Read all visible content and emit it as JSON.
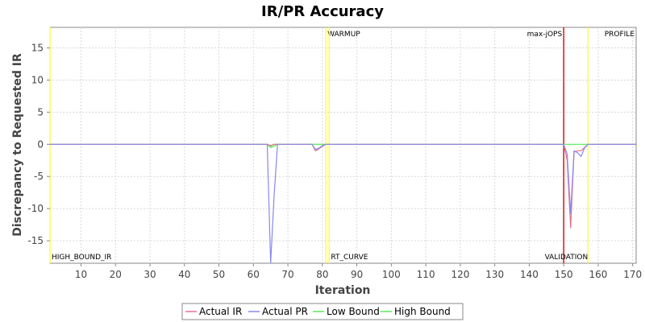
{
  "chart_data": {
    "type": "line",
    "title": "IR/PR Accuracy",
    "xlabel": "Iteration",
    "ylabel": "Discrepancy to Requested IR",
    "xlim": [
      1,
      171
    ],
    "ylim": [
      -18.5,
      18.2
    ],
    "x_ticks": [
      10,
      20,
      30,
      40,
      50,
      60,
      70,
      80,
      90,
      100,
      110,
      120,
      130,
      140,
      150,
      160,
      170
    ],
    "y_ticks": [
      15,
      10,
      5,
      0,
      -5,
      -10,
      -15
    ],
    "grid": true,
    "legend_position": "bottom-center",
    "series": [
      {
        "name": "Actual IR",
        "color": "#e8708a",
        "points": [
          [
            1,
            0
          ],
          [
            20,
            0
          ],
          [
            40,
            0
          ],
          [
            60,
            0
          ],
          [
            64,
            0
          ],
          [
            65,
            -0.2
          ],
          [
            66,
            0
          ],
          [
            70,
            0
          ],
          [
            76,
            0
          ],
          [
            77,
            0
          ],
          [
            78,
            -1.0
          ],
          [
            79,
            -0.7
          ],
          [
            80,
            -0.3
          ],
          [
            81,
            0
          ],
          [
            100,
            0
          ],
          [
            120,
            0
          ],
          [
            149,
            0
          ],
          [
            150,
            0
          ],
          [
            151,
            -2.5
          ],
          [
            152,
            -13.0
          ],
          [
            153,
            -1.2
          ],
          [
            154,
            -1.0
          ],
          [
            155,
            -1.0
          ],
          [
            156,
            -0.5
          ],
          [
            157,
            0
          ],
          [
            171,
            0
          ]
        ]
      },
      {
        "name": "Actual PR",
        "color": "#8888ee",
        "points": [
          [
            1,
            0
          ],
          [
            20,
            0
          ],
          [
            40,
            0
          ],
          [
            64,
            0
          ],
          [
            65,
            -18.5
          ],
          [
            66,
            -8
          ],
          [
            67,
            0
          ],
          [
            70,
            0
          ],
          [
            77,
            0
          ],
          [
            78,
            -0.8
          ],
          [
            79,
            -0.6
          ],
          [
            80,
            -0.2
          ],
          [
            81,
            0
          ],
          [
            100,
            0
          ],
          [
            149,
            0
          ],
          [
            150,
            0
          ],
          [
            151,
            -1.5
          ],
          [
            152,
            -10.8
          ],
          [
            153,
            -1.0
          ],
          [
            154,
            -1.3
          ],
          [
            155,
            -1.9
          ],
          [
            156,
            -0.6
          ],
          [
            157,
            0
          ],
          [
            171,
            0
          ]
        ]
      },
      {
        "name": "Low Bound",
        "color": "#55ee55",
        "points": [
          [
            1,
            0
          ],
          [
            20,
            0
          ],
          [
            60,
            0
          ],
          [
            64,
            0
          ],
          [
            65,
            -0.5
          ],
          [
            66,
            -0.3
          ],
          [
            67,
            0
          ],
          [
            81,
            0
          ],
          [
            82,
            0
          ]
        ]
      },
      {
        "name": "High Bound",
        "color": "#55ee55",
        "points": [
          [
            1,
            0
          ],
          [
            20,
            0
          ],
          [
            60,
            0
          ],
          [
            64,
            0
          ],
          [
            65,
            -0.3
          ],
          [
            66,
            0
          ],
          [
            81,
            0
          ],
          [
            82,
            0
          ],
          [
            149,
            0
          ],
          [
            157,
            0
          ],
          [
            158,
            0
          ],
          [
            171,
            0
          ]
        ]
      }
    ],
    "markers": [
      {
        "x": 81,
        "label": "WARMUP",
        "color": "#ffff44",
        "label_pos": "top"
      },
      {
        "x": 82,
        "label": "RT_CURVE",
        "color": "#ffff44",
        "label_pos": "bottom"
      },
      {
        "x": 150,
        "label": "max-jOPS",
        "color": "#dd2222",
        "label_pos": "top-left"
      },
      {
        "x": 150,
        "label": "VALIDATION",
        "color": "#dd2222",
        "label_pos": "bottom-left"
      },
      {
        "x": 157,
        "label": "PROFILE",
        "color": "#ffff44",
        "label_pos": "top-right"
      },
      {
        "x": 1,
        "label": "HIGH_BOUND_IR",
        "color": "#ffff44",
        "label_pos": "bottom"
      }
    ]
  }
}
